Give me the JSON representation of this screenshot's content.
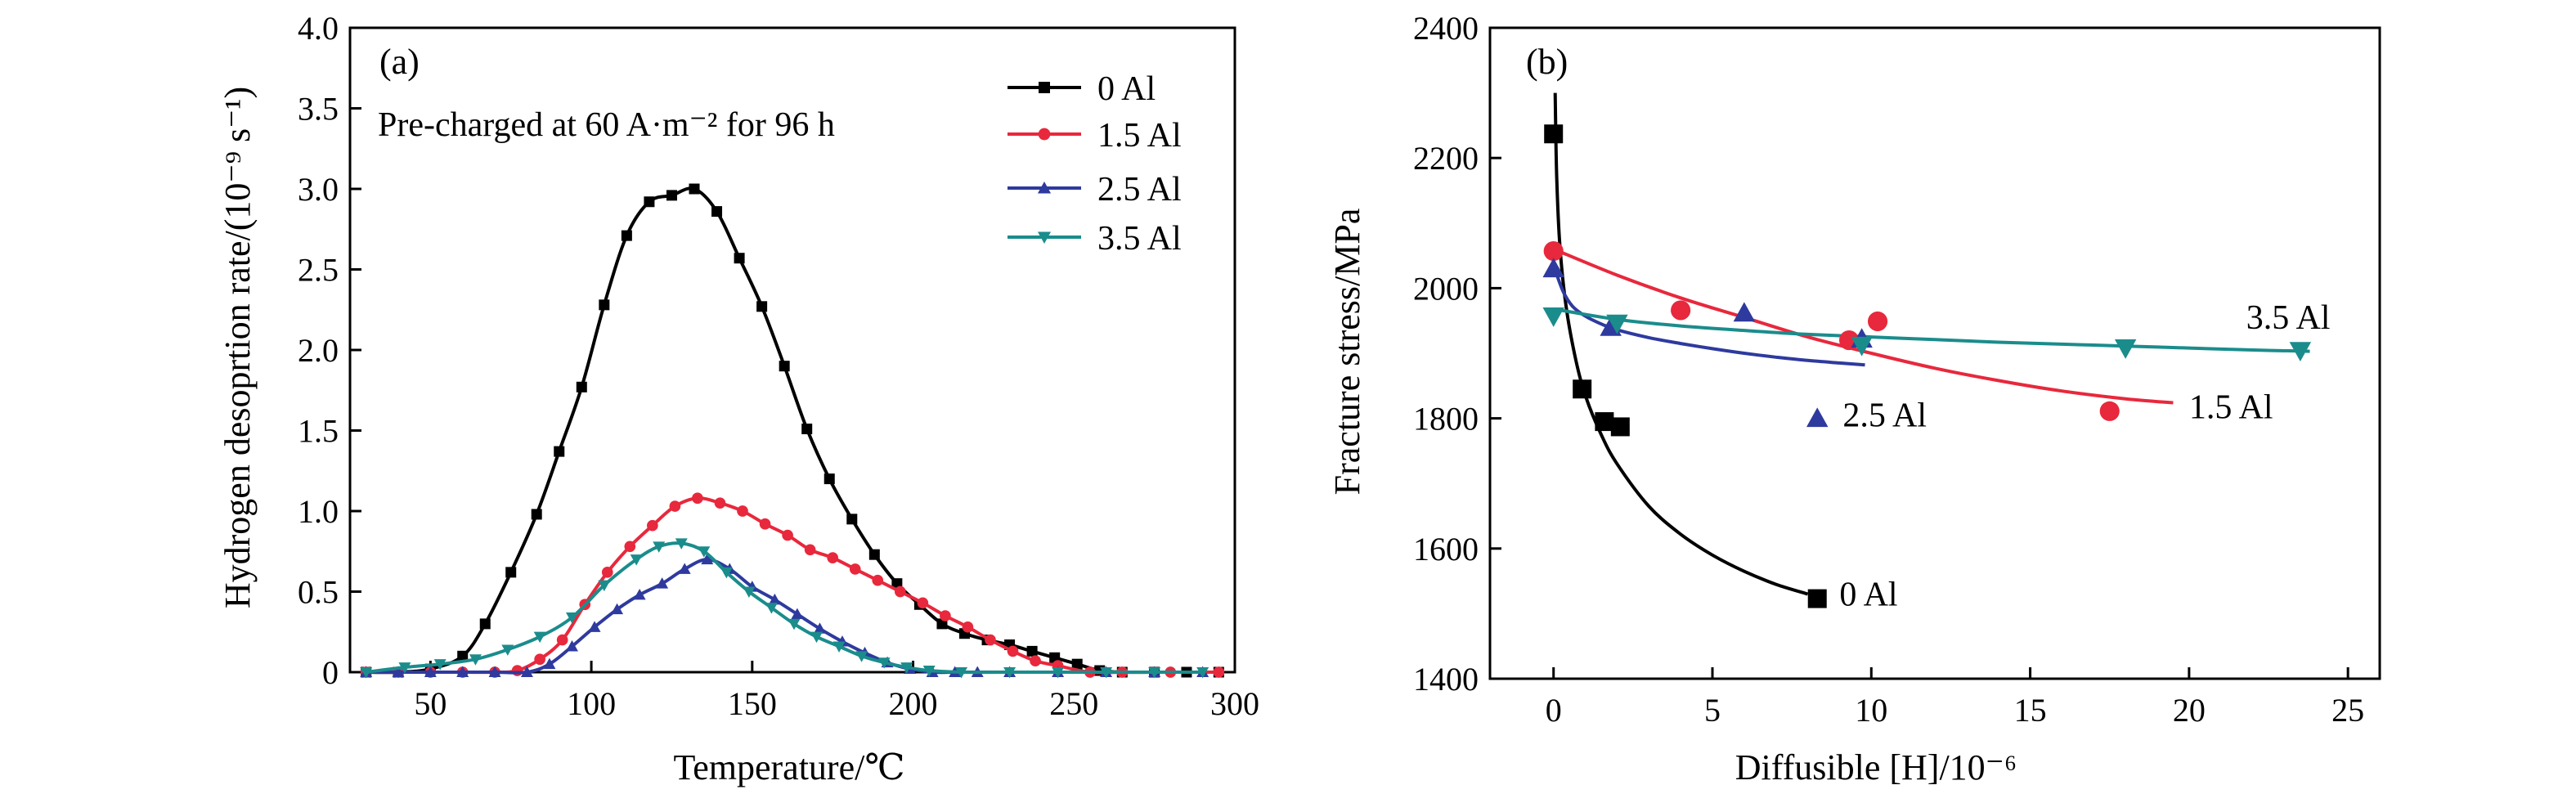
{
  "chart_data": [
    {
      "type": "line",
      "panel_label": "(a)",
      "annotation": "Pre-charged at 60 A·m⁻² for 96 h",
      "xlabel": "Temperature/℃",
      "ylabel": "Hydrogen desoprtion rate/(10⁻⁹ s⁻¹)",
      "xlim": [
        25,
        300
      ],
      "ylim": [
        0,
        4.0
      ],
      "xticks": [
        50,
        100,
        150,
        200,
        250,
        300
      ],
      "xtick_labels": [
        "50",
        "100",
        "150",
        "200",
        "250",
        "300"
      ],
      "yticks": [
        0,
        0.5,
        1.0,
        1.5,
        2.0,
        2.5,
        3.0,
        3.5,
        4.0
      ],
      "ytick_labels": [
        "0",
        "0.5",
        "1.0",
        "1.5",
        "2.0",
        "2.5",
        "3.0",
        "3.5",
        "4.0"
      ],
      "legend_position": "top-right",
      "series": [
        {
          "name": "0 Al",
          "color": "#000000",
          "marker": "square",
          "x": [
            30,
            40,
            50,
            60,
            67,
            75,
            83,
            90,
            97,
            104,
            111,
            118,
            125,
            132,
            139,
            146,
            153,
            160,
            167,
            174,
            181,
            188,
            195,
            202,
            209,
            216,
            223,
            230,
            237,
            244,
            251,
            258,
            265,
            275,
            285,
            295
          ],
          "y": [
            0,
            0,
            0.02,
            0.1,
            0.3,
            0.62,
            0.98,
            1.37,
            1.77,
            2.28,
            2.71,
            2.92,
            2.96,
            3.0,
            2.86,
            2.57,
            2.27,
            1.9,
            1.51,
            1.2,
            0.95,
            0.73,
            0.55,
            0.42,
            0.3,
            0.24,
            0.2,
            0.17,
            0.13,
            0.09,
            0.05,
            0.01,
            0,
            0,
            0,
            0
          ]
        },
        {
          "name": "1.5 Al",
          "color": "#e8283c",
          "marker": "circle",
          "x": [
            30,
            40,
            50,
            60,
            70,
            77,
            84,
            91,
            98,
            105,
            112,
            119,
            126,
            133,
            140,
            147,
            154,
            161,
            168,
            175,
            182,
            189,
            196,
            203,
            210,
            217,
            224,
            231,
            238,
            245,
            255,
            265,
            280,
            295
          ],
          "y": [
            0,
            0,
            0,
            0,
            0,
            0.01,
            0.08,
            0.2,
            0.42,
            0.62,
            0.78,
            0.91,
            1.03,
            1.08,
            1.05,
            1.0,
            0.92,
            0.85,
            0.76,
            0.71,
            0.64,
            0.57,
            0.5,
            0.43,
            0.35,
            0.28,
            0.2,
            0.13,
            0.07,
            0.04,
            0,
            0,
            0,
            0
          ]
        },
        {
          "name": "2.5 Al",
          "color": "#2e3a9e",
          "marker": "triangle-up",
          "x": [
            30,
            40,
            50,
            60,
            70,
            80,
            87,
            94,
            101,
            108,
            115,
            122,
            129,
            136,
            143,
            150,
            157,
            164,
            171,
            178,
            185,
            192,
            199,
            206,
            213,
            220,
            230,
            245,
            260,
            275,
            290
          ],
          "y": [
            0,
            0,
            0,
            0,
            0,
            0,
            0.05,
            0.16,
            0.28,
            0.39,
            0.48,
            0.55,
            0.64,
            0.7,
            0.64,
            0.53,
            0.45,
            0.36,
            0.27,
            0.19,
            0.12,
            0.06,
            0.02,
            0,
            0,
            0,
            0,
            0,
            0,
            0,
            0
          ]
        },
        {
          "name": "3.5 Al",
          "color": "#1b8c8c",
          "marker": "triangle-down",
          "x": [
            30,
            42,
            53,
            64,
            74,
            84,
            94,
            104,
            114,
            121,
            128,
            135,
            142,
            149,
            156,
            163,
            170,
            177,
            184,
            191,
            198,
            205,
            215,
            230,
            245,
            260,
            275,
            290
          ],
          "y": [
            0,
            0.03,
            0.05,
            0.08,
            0.14,
            0.22,
            0.34,
            0.54,
            0.7,
            0.78,
            0.8,
            0.75,
            0.62,
            0.5,
            0.4,
            0.3,
            0.22,
            0.16,
            0.1,
            0.06,
            0.03,
            0.01,
            0,
            0,
            0,
            0,
            0,
            0
          ]
        }
      ]
    },
    {
      "type": "scatter",
      "panel_label": "(b)",
      "xlabel": "Diffusible [H]/10⁻⁶",
      "ylabel": "Fracture stress/MPa",
      "xlim": [
        -2,
        26
      ],
      "ylim": [
        1400,
        2400
      ],
      "xticks": [
        0,
        5,
        10,
        15,
        20,
        25
      ],
      "xtick_labels": [
        "0",
        "5",
        "10",
        "15",
        "20",
        "25"
      ],
      "yticks": [
        1400,
        1600,
        1800,
        2000,
        2200,
        2400
      ],
      "ytick_labels": [
        "1400",
        "1600",
        "1800",
        "2000",
        "2200",
        "2400"
      ],
      "series": [
        {
          "name": "0 Al",
          "color": "#000000",
          "marker": "square",
          "points": [
            [
              0,
              2237
            ],
            [
              0.9,
              1845
            ],
            [
              1.6,
              1795
            ],
            [
              2.1,
              1787
            ],
            [
              8.3,
              1523
            ]
          ],
          "fit_x": [
            0.05,
            0.1,
            0.2,
            0.4,
            0.7,
            1.0,
            1.5,
            2.0,
            3.0,
            4.0,
            5.0,
            6.0,
            7.0,
            8.0
          ],
          "fit_y": [
            2300,
            2170,
            2065,
            1970,
            1890,
            1835,
            1775,
            1730,
            1665,
            1622,
            1590,
            1565,
            1545,
            1530
          ],
          "label": "0 Al",
          "label_at": [
            9.0,
            1530
          ]
        },
        {
          "name": "1.5 Al",
          "color": "#e8283c",
          "marker": "circle",
          "points": [
            [
              0,
              2057
            ],
            [
              4.0,
              1966
            ],
            [
              9.3,
              1920
            ],
            [
              10.2,
              1949
            ],
            [
              17.5,
              1811
            ]
          ],
          "fit_x": [
            0,
            2,
            4,
            6,
            8,
            10,
            12,
            14,
            16,
            18,
            19.5
          ],
          "fit_y": [
            2060,
            2020,
            1985,
            1955,
            1925,
            1900,
            1877,
            1858,
            1842,
            1830,
            1824
          ],
          "label": "1.5 Al",
          "label_at": [
            20.0,
            1818
          ]
        },
        {
          "name": "2.5 Al",
          "color": "#2e3a9e",
          "marker": "triangle-up",
          "points": [
            [
              0,
              2030
            ],
            [
              1.8,
              1940
            ],
            [
              6.0,
              1962
            ],
            [
              9.7,
              1922
            ],
            [
              8.3,
              1800
            ]
          ],
          "fit_x": [
            0,
            0.3,
            0.6,
            1.0,
            1.5,
            2.0,
            3.0,
            4.0,
            5.0,
            6.0,
            7.0,
            8.0,
            9.0,
            9.8
          ],
          "fit_y": [
            2035,
            1995,
            1972,
            1957,
            1945,
            1936,
            1924,
            1915,
            1907,
            1900,
            1894,
            1889,
            1885,
            1882
          ],
          "label": "2.5 Al",
          "label_at": [
            9.1,
            1805
          ]
        },
        {
          "name": "3.5 Al",
          "color": "#1b8c8c",
          "marker": "triangle-down",
          "points": [
            [
              0,
              1957
            ],
            [
              2.0,
              1946
            ],
            [
              9.7,
              1912
            ],
            [
              18.0,
              1908
            ],
            [
              23.5,
              1904
            ]
          ],
          "fit_x": [
            0,
            2,
            4,
            6,
            8,
            10,
            12,
            14,
            16,
            18,
            20,
            22,
            23.8
          ],
          "fit_y": [
            1968,
            1952,
            1942,
            1935,
            1929,
            1925,
            1921,
            1917,
            1914,
            1911,
            1908,
            1905,
            1903
          ],
          "label": "3.5 Al",
          "label_at": [
            21.8,
            1955
          ]
        }
      ]
    }
  ]
}
